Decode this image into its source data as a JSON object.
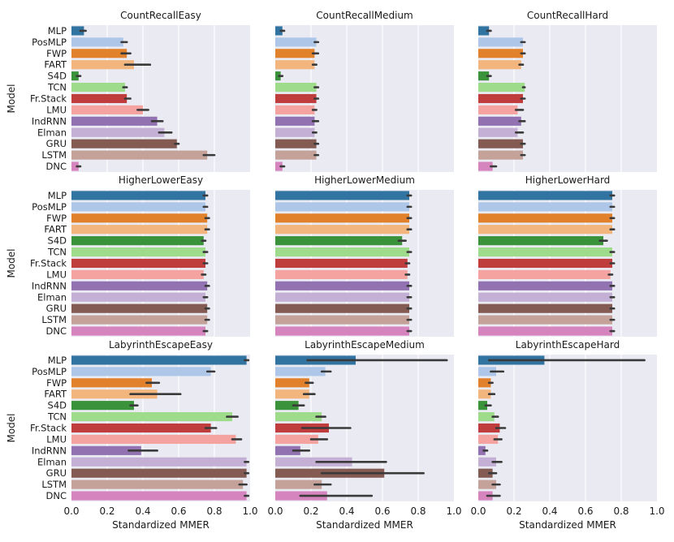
{
  "figure": {
    "ylabel": "Model",
    "xlabel": "Standardized MMER",
    "xlim": [
      0,
      1
    ],
    "xticks": [
      "0.0",
      "0.2",
      "0.4",
      "0.6",
      "0.8",
      "1.0"
    ],
    "tick_values": [
      0,
      0.2,
      0.4,
      0.6,
      0.8,
      1.0
    ],
    "background": "#eaeaf2",
    "errorbar_color": "#3a3a3a"
  },
  "models": [
    "MLP",
    "PosMLP",
    "FWP",
    "FART",
    "S4D",
    "TCN",
    "Fr.Stack",
    "LMU",
    "IndRNN",
    "Elman",
    "GRU",
    "LSTM",
    "DNC"
  ],
  "colors": [
    "#3274a1",
    "#aec7e8",
    "#e1812c",
    "#f2b57e",
    "#3a923a",
    "#9edc8c",
    "#c03d3e",
    "#f5a3a0",
    "#9372b2",
    "#c5b0d5",
    "#845b53",
    "#c4a29a",
    "#d684bd"
  ],
  "chart_data": [
    {
      "type": "bar",
      "title": "CountRecallEasy",
      "values": [
        0.07,
        0.29,
        0.31,
        0.35,
        0.04,
        0.3,
        0.31,
        0.4,
        0.48,
        0.52,
        0.59,
        0.76,
        0.04
      ],
      "err": [
        [
          0.05,
          0.08
        ],
        [
          0.28,
          0.31
        ],
        [
          0.28,
          0.33
        ],
        [
          0.3,
          0.44
        ],
        [
          0.03,
          0.05
        ],
        [
          0.29,
          0.31
        ],
        [
          0.3,
          0.33
        ],
        [
          0.37,
          0.43
        ],
        [
          0.45,
          0.51
        ],
        [
          0.49,
          0.56
        ],
        [
          0.58,
          0.6
        ],
        [
          0.74,
          0.8
        ],
        [
          0.03,
          0.05
        ]
      ]
    },
    {
      "type": "bar",
      "title": "CountRecallMedium",
      "values": [
        0.04,
        0.23,
        0.22,
        0.22,
        0.03,
        0.23,
        0.23,
        0.22,
        0.22,
        0.22,
        0.23,
        0.23,
        0.04
      ],
      "err": [
        [
          0.03,
          0.05
        ],
        [
          0.22,
          0.24
        ],
        [
          0.21,
          0.24
        ],
        [
          0.21,
          0.23
        ],
        [
          0.02,
          0.04
        ],
        [
          0.22,
          0.24
        ],
        [
          0.22,
          0.24
        ],
        [
          0.21,
          0.23
        ],
        [
          0.21,
          0.24
        ],
        [
          0.21,
          0.23
        ],
        [
          0.22,
          0.24
        ],
        [
          0.22,
          0.24
        ],
        [
          0.03,
          0.05
        ]
      ]
    },
    {
      "type": "bar",
      "title": "CountRecallHard",
      "values": [
        0.06,
        0.25,
        0.25,
        0.24,
        0.06,
        0.26,
        0.25,
        0.22,
        0.24,
        0.22,
        0.25,
        0.25,
        0.08
      ],
      "err": [
        [
          0.05,
          0.07
        ],
        [
          0.24,
          0.26
        ],
        [
          0.24,
          0.26
        ],
        [
          0.23,
          0.25
        ],
        [
          0.05,
          0.07
        ],
        [
          0.25,
          0.26
        ],
        [
          0.24,
          0.26
        ],
        [
          0.21,
          0.25
        ],
        [
          0.23,
          0.26
        ],
        [
          0.21,
          0.25
        ],
        [
          0.24,
          0.26
        ],
        [
          0.24,
          0.26
        ],
        [
          0.07,
          0.1
        ]
      ]
    },
    {
      "type": "bar",
      "title": "HigherLowerEasy",
      "values": [
        0.75,
        0.75,
        0.76,
        0.76,
        0.74,
        0.75,
        0.75,
        0.74,
        0.76,
        0.75,
        0.76,
        0.76,
        0.75
      ],
      "err": [
        [
          0.74,
          0.76
        ],
        [
          0.74,
          0.76
        ],
        [
          0.75,
          0.77
        ],
        [
          0.75,
          0.77
        ],
        [
          0.73,
          0.75
        ],
        [
          0.74,
          0.76
        ],
        [
          0.74,
          0.76
        ],
        [
          0.73,
          0.75
        ],
        [
          0.75,
          0.77
        ],
        [
          0.74,
          0.76
        ],
        [
          0.75,
          0.77
        ],
        [
          0.75,
          0.77
        ],
        [
          0.74,
          0.76
        ]
      ]
    },
    {
      "type": "bar",
      "title": "HigherLowerMedium",
      "values": [
        0.75,
        0.75,
        0.75,
        0.75,
        0.71,
        0.75,
        0.74,
        0.74,
        0.75,
        0.75,
        0.75,
        0.75,
        0.75
      ],
      "err": [
        [
          0.74,
          0.76
        ],
        [
          0.74,
          0.76
        ],
        [
          0.74,
          0.76
        ],
        [
          0.74,
          0.76
        ],
        [
          0.69,
          0.73
        ],
        [
          0.74,
          0.76
        ],
        [
          0.73,
          0.75
        ],
        [
          0.73,
          0.75
        ],
        [
          0.74,
          0.76
        ],
        [
          0.74,
          0.76
        ],
        [
          0.74,
          0.76
        ],
        [
          0.74,
          0.76
        ],
        [
          0.74,
          0.76
        ]
      ]
    },
    {
      "type": "bar",
      "title": "HigherLowerHard",
      "values": [
        0.75,
        0.75,
        0.75,
        0.75,
        0.7,
        0.75,
        0.75,
        0.74,
        0.75,
        0.75,
        0.75,
        0.75,
        0.75
      ],
      "err": [
        [
          0.74,
          0.76
        ],
        [
          0.74,
          0.76
        ],
        [
          0.74,
          0.76
        ],
        [
          0.74,
          0.76
        ],
        [
          0.68,
          0.72
        ],
        [
          0.74,
          0.76
        ],
        [
          0.74,
          0.76
        ],
        [
          0.73,
          0.75
        ],
        [
          0.74,
          0.76
        ],
        [
          0.74,
          0.76
        ],
        [
          0.74,
          0.76
        ],
        [
          0.74,
          0.76
        ],
        [
          0.74,
          0.76
        ]
      ]
    },
    {
      "type": "bar",
      "title": "LabyrinthEscapeEasy",
      "values": [
        0.98,
        0.78,
        0.45,
        0.48,
        0.35,
        0.9,
        0.78,
        0.92,
        0.39,
        0.98,
        0.98,
        0.96,
        0.98
      ],
      "err": [
        [
          0.97,
          0.99
        ],
        [
          0.76,
          0.8
        ],
        [
          0.42,
          0.49
        ],
        [
          0.33,
          0.61
        ],
        [
          0.33,
          0.37
        ],
        [
          0.87,
          0.93
        ],
        [
          0.75,
          0.81
        ],
        [
          0.9,
          0.95
        ],
        [
          0.32,
          0.48
        ],
        [
          0.97,
          0.99
        ],
        [
          0.97,
          0.99
        ],
        [
          0.94,
          0.98
        ],
        [
          0.97,
          0.99
        ]
      ]
    },
    {
      "type": "bar",
      "title": "LabyrinthEscapeMedium",
      "values": [
        0.45,
        0.28,
        0.19,
        0.19,
        0.13,
        0.26,
        0.3,
        0.24,
        0.14,
        0.43,
        0.61,
        0.26,
        0.29
      ],
      "err": [
        [
          0.18,
          0.96
        ],
        [
          0.26,
          0.31
        ],
        [
          0.17,
          0.21
        ],
        [
          0.16,
          0.22
        ],
        [
          0.1,
          0.16
        ],
        [
          0.23,
          0.28
        ],
        [
          0.15,
          0.42
        ],
        [
          0.2,
          0.29
        ],
        [
          0.1,
          0.19
        ],
        [
          0.23,
          0.62
        ],
        [
          0.26,
          0.83
        ],
        [
          0.22,
          0.31
        ],
        [
          0.14,
          0.54
        ]
      ]
    },
    {
      "type": "bar",
      "title": "LabyrinthEscapeHard",
      "values": [
        0.37,
        0.1,
        0.07,
        0.07,
        0.05,
        0.09,
        0.12,
        0.11,
        0.04,
        0.1,
        0.08,
        0.1,
        0.08
      ],
      "err": [
        [
          0.06,
          0.93
        ],
        [
          0.07,
          0.14
        ],
        [
          0.06,
          0.08
        ],
        [
          0.06,
          0.09
        ],
        [
          0.04,
          0.07
        ],
        [
          0.08,
          0.11
        ],
        [
          0.1,
          0.15
        ],
        [
          0.09,
          0.13
        ],
        [
          0.03,
          0.05
        ],
        [
          0.08,
          0.13
        ],
        [
          0.06,
          0.1
        ],
        [
          0.08,
          0.12
        ],
        [
          0.05,
          0.12
        ]
      ]
    }
  ]
}
